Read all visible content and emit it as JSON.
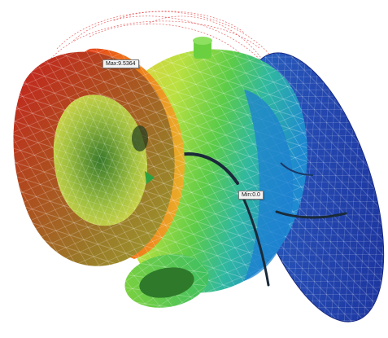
{
  "viewport": {
    "labels": {
      "max": "Max:9.5364",
      "min": "Min:0.0"
    }
  },
  "colors": {
    "background": "#ffffff",
    "contour_high": "#c81e1e",
    "contour_upper": "#f07a1a",
    "contour_mid": "#e8d83a",
    "contour_midlow": "#5cd040",
    "contour_low": "#1e9ad8",
    "contour_min": "#1a2f9a",
    "mesh_lines": "#ffffff",
    "streamlines": "#e03030"
  },
  "icons": {
    "model": "pump-volute-fem-model"
  }
}
